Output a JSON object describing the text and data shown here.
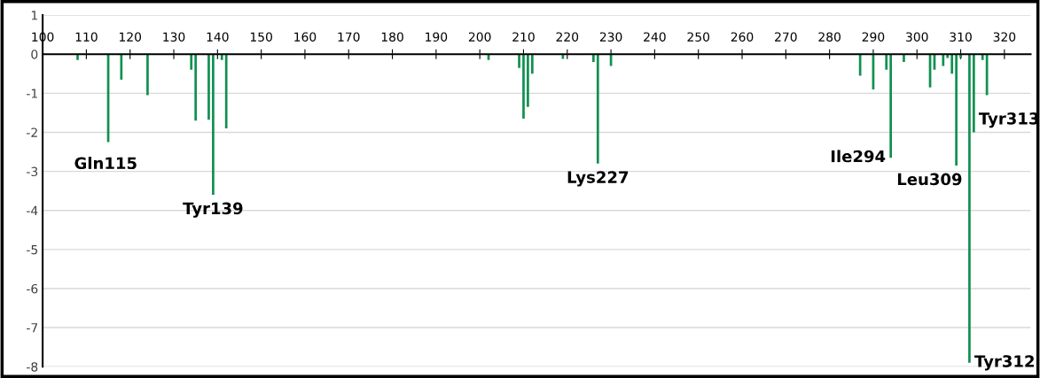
{
  "chart_data": {
    "type": "bar",
    "color": "#109050",
    "x": [
      108,
      115,
      118,
      124,
      134,
      135,
      138,
      139,
      141,
      142,
      202,
      209,
      210,
      211,
      212,
      219,
      226,
      227,
      230,
      287,
      290,
      293,
      294,
      297,
      303,
      304,
      306,
      307,
      308,
      309,
      310,
      312,
      313,
      315,
      316
    ],
    "values": [
      -0.15,
      -2.25,
      -0.65,
      -1.05,
      -0.4,
      -1.7,
      -1.68,
      -3.6,
      -0.15,
      -1.9,
      -0.15,
      -0.35,
      -1.65,
      -1.35,
      -0.5,
      -0.12,
      -0.2,
      -2.8,
      -0.3,
      -0.55,
      -0.9,
      -0.4,
      -2.65,
      -0.2,
      -0.85,
      -0.4,
      -0.3,
      -0.1,
      -0.5,
      -2.85,
      -0.1,
      -7.9,
      -2.0,
      -0.15,
      -1.05
    ],
    "xlim": [
      100,
      326
    ],
    "xticks": [
      100,
      110,
      120,
      130,
      140,
      150,
      160,
      170,
      180,
      190,
      200,
      210,
      220,
      230,
      240,
      250,
      260,
      270,
      280,
      290,
      300,
      310,
      320
    ],
    "ylim": [
      -8,
      1
    ],
    "yticks": [
      -8,
      -7,
      -6,
      -5,
      -4,
      -3,
      -2,
      -1,
      0,
      1
    ],
    "grid": "y",
    "annotations": [
      {
        "text": "Gln115",
        "x": 115,
        "y": -2.25
      },
      {
        "text": "Tyr139",
        "x": 139,
        "y": -3.6
      },
      {
        "text": "Lys227",
        "x": 227,
        "y": -2.8
      },
      {
        "text": "Ile294",
        "x": 294,
        "y": -2.65
      },
      {
        "text": "Leu309",
        "x": 309,
        "y": -2.85
      },
      {
        "text": "Tyr313",
        "x": 313,
        "y": -2.0
      },
      {
        "text": "Tyr312",
        "x": 312,
        "y": -7.9
      }
    ]
  }
}
